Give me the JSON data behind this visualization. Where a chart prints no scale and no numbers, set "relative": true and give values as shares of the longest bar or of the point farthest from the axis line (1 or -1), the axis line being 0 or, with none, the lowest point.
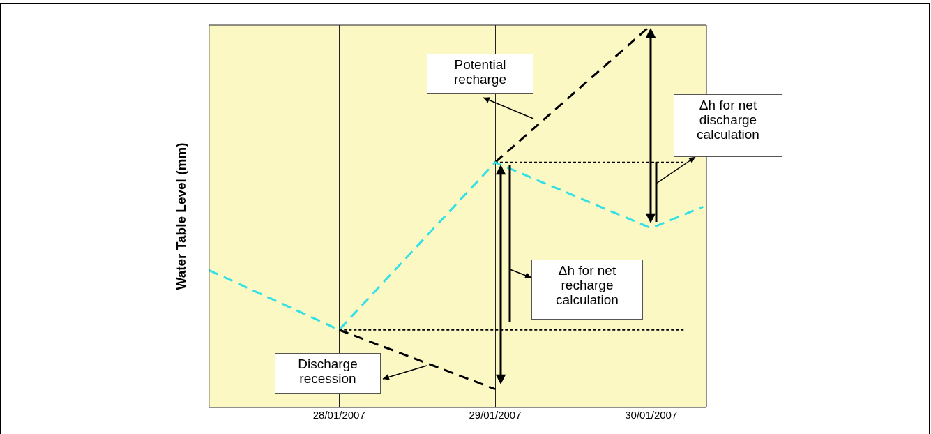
{
  "chart_data": {
    "type": "line",
    "ylabel": "Water Table Level (mm)",
    "relative": true,
    "xlim": [
      "2007-01-27T04:00",
      "2007-01-30T08:30"
    ],
    "xticks": [
      {
        "value": "2007-01-28",
        "label": "28/01/2007"
      },
      {
        "value": "2007-01-29",
        "label": "29/01/2007"
      },
      {
        "value": "2007-01-30",
        "label": "30/01/2007"
      }
    ],
    "grid": "x",
    "legend": false,
    "marker": "none",
    "series": [
      {
        "color": "#33e0e6",
        "line_style": "dashed",
        "x": [
          "2007-01-27T04:00",
          "2007-01-28",
          "2007-01-29",
          "2007-01-30",
          "2007-01-30T08:00"
        ],
        "values": [
          0.359,
          0.203,
          0.641,
          0.469,
          0.525
        ]
      },
      {
        "color": "#000000",
        "line_style": "dashed",
        "x": [
          "2007-01-28",
          "2007-01-29"
        ],
        "values": [
          0.203,
          0.048
        ]
      },
      {
        "color": "#000000",
        "line_style": "dashed",
        "x": [
          "2007-01-29",
          "2007-01-30"
        ],
        "values": [
          0.641,
          1.0
        ]
      },
      {
        "color": "#000000",
        "line_style": "dotted",
        "x": [
          "2007-01-28",
          "2007-01-30T05:15"
        ],
        "values": [
          0.203,
          0.203
        ]
      },
      {
        "color": "#000000",
        "line_style": "dotted",
        "x": [
          "2007-01-29",
          "2007-01-30T05:15"
        ],
        "values": [
          0.641,
          0.641
        ]
      }
    ],
    "annotations": [
      "Potential recharge",
      "Δh for net recharge calculation",
      "Δh for net discharge calculation",
      "Discharge recession"
    ]
  }
}
